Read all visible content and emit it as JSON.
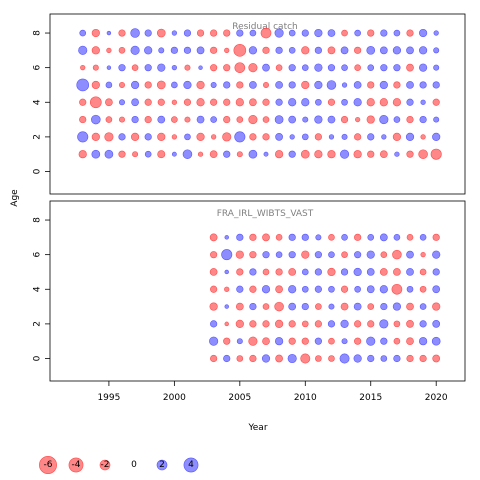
{
  "chart_data": {
    "type": "scatter",
    "xlabel": "Year",
    "ylabel": "Age",
    "x_ticks": [
      1995,
      2000,
      2005,
      2010,
      2015,
      2020
    ],
    "y_ticks": [
      0,
      2,
      4,
      6,
      8
    ],
    "xlim": [
      1990.5,
      2022.2
    ],
    "ylim": [
      -1.3,
      9.1
    ],
    "colors": {
      "negative": "#ff4646",
      "positive": "#5050ff"
    },
    "legend": {
      "placement": "bottom-left",
      "values": [
        -6,
        -4,
        -2,
        0,
        2,
        4
      ]
    },
    "panels": [
      {
        "title": "Residual catch",
        "years": [
          1993,
          1994,
          1995,
          1996,
          1997,
          1998,
          1999,
          2000,
          2001,
          2002,
          2003,
          2004,
          2005,
          2006,
          2007,
          2008,
          2009,
          2010,
          2011,
          2012,
          2013,
          2014,
          2015,
          2016,
          2017,
          2018,
          2019,
          2020
        ],
        "ages": [
          1,
          2,
          3,
          4,
          5,
          6,
          7,
          8
        ],
        "residuals": [
          [
            -1.6,
            1.8,
            1.8,
            -1.2,
            -0.8,
            1.0,
            -1.5,
            0.5,
            2.2,
            -0.6,
            -1.4,
            1.2,
            -0.8,
            1.8,
            0.5,
            -1.6,
            1.2,
            -1.8,
            -1.6,
            -1.6,
            2.0,
            -1.6,
            -1.2,
            -1.4,
            0.6,
            -1.2,
            -2.2,
            -3.0
          ],
          [
            3.0,
            -1.6,
            -2.0,
            1.2,
            -1.6,
            1.2,
            -1.6,
            -0.6,
            1.0,
            -1.6,
            -0.6,
            -2.0,
            3.0,
            -1.2,
            -1.2,
            1.4,
            0.6,
            1.0,
            -1.2,
            0.6,
            0.8,
            -1.2,
            1.2,
            0.6,
            -1.6,
            1.6,
            -0.6,
            1.6
          ],
          [
            -1.2,
            2.2,
            -1.0,
            -0.8,
            1.2,
            -1.2,
            1.4,
            -1.0,
            -0.8,
            1.4,
            1.0,
            -1.2,
            -1.0,
            -2.0,
            -1.0,
            1.8,
            1.4,
            0.8,
            1.6,
            1.4,
            -1.2,
            -0.6,
            -1.6,
            2.0,
            1.0,
            -1.2,
            1.2,
            0.8
          ],
          [
            -1.2,
            -3.4,
            -1.4,
            0.8,
            1.4,
            -1.2,
            -1.2,
            -0.6,
            -1.2,
            -1.6,
            -1.2,
            -1.2,
            -1.6,
            -1.4,
            -1.2,
            1.2,
            1.6,
            1.6,
            1.0,
            -1.2,
            1.0,
            1.6,
            -1.6,
            -1.6,
            -1.6,
            1.2,
            0.6,
            -1.2
          ],
          [
            4.0,
            -1.6,
            1.0,
            -0.8,
            1.6,
            -1.2,
            -1.8,
            1.0,
            1.6,
            -1.6,
            0.8,
            1.2,
            -1.2,
            1.4,
            -0.8,
            1.4,
            1.2,
            -1.6,
            1.6,
            2.2,
            0.6,
            1.4,
            -1.2,
            1.6,
            -1.2,
            1.4,
            1.2,
            1.2
          ],
          [
            -0.6,
            -0.8,
            0.4,
            1.2,
            -1.0,
            1.2,
            1.6,
            0.6,
            -0.8,
            0.4,
            -1.2,
            -1.2,
            -2.8,
            -2.0,
            1.4,
            -1.0,
            1.2,
            1.0,
            1.6,
            1.2,
            1.0,
            -1.0,
            1.0,
            1.2,
            1.2,
            -1.4,
            1.6,
            0.8
          ],
          [
            2.0,
            -1.6,
            -0.6,
            -1.0,
            2.0,
            1.6,
            0.8,
            1.2,
            1.2,
            1.4,
            -1.2,
            -0.6,
            -4.0,
            1.6,
            -1.2,
            1.2,
            1.0,
            -1.6,
            1.2,
            -1.4,
            1.4,
            -1.2,
            1.8,
            1.4,
            1.6,
            1.4,
            1.6,
            0.8
          ],
          [
            1.0,
            -1.6,
            0.4,
            -1.2,
            2.2,
            1.2,
            -1.8,
            0.6,
            1.2,
            -1.2,
            -1.2,
            -1.2,
            1.2,
            1.0,
            -2.8,
            2.0,
            1.0,
            1.2,
            1.6,
            1.4,
            -1.0,
            1.0,
            -1.2,
            1.2,
            1.0,
            -1.2,
            1.6,
            0.6
          ]
        ]
      },
      {
        "title": "FRA_IRL_WIBTS_VAST",
        "years": [
          2003,
          2004,
          2005,
          2006,
          2007,
          2008,
          2009,
          2010,
          2011,
          2012,
          2013,
          2014,
          2015,
          2016,
          2017,
          2018,
          2019,
          2020
        ],
        "ages": [
          0,
          1,
          2,
          3,
          4,
          5,
          6,
          7
        ],
        "residuals": [
          [
            -1.2,
            1.2,
            -1.0,
            -1.2,
            1.6,
            -1.4,
            2.0,
            -2.4,
            -1.0,
            -1.0,
            2.4,
            1.6,
            1.2,
            1.0,
            1.2,
            -1.2,
            -1.2,
            -1.4
          ],
          [
            2.0,
            -1.2,
            0.8,
            -2.0,
            -1.4,
            1.6,
            -1.2,
            -1.2,
            1.2,
            -1.0,
            0.8,
            -1.2,
            2.0,
            1.2,
            -1.0,
            -1.4,
            1.6,
            1.8
          ],
          [
            1.2,
            -0.4,
            -1.6,
            -1.2,
            -1.2,
            -1.6,
            -1.2,
            -1.0,
            -1.2,
            1.2,
            1.6,
            -1.2,
            -1.2,
            2.0,
            -1.0,
            -1.4,
            1.2,
            1.4
          ],
          [
            -1.6,
            0.4,
            -1.4,
            1.2,
            -1.0,
            -2.2,
            1.4,
            1.2,
            -1.0,
            0.8,
            -1.4,
            1.4,
            -1.0,
            1.2,
            1.6,
            -1.4,
            1.0,
            -1.6
          ],
          [
            -1.2,
            -0.6,
            1.2,
            -1.2,
            1.6,
            -1.4,
            1.6,
            1.0,
            1.2,
            1.0,
            -1.2,
            1.0,
            1.4,
            1.6,
            -2.8,
            1.0,
            -1.0,
            1.4
          ],
          [
            -1.4,
            0.4,
            -1.2,
            1.2,
            -1.0,
            -1.2,
            -1.4,
            1.0,
            1.2,
            -1.6,
            1.2,
            1.6,
            1.4,
            -1.4,
            -1.4,
            1.4,
            -1.0,
            1.2
          ],
          [
            -1.2,
            3.0,
            -1.6,
            -1.2,
            1.2,
            1.0,
            1.2,
            -1.6,
            1.2,
            1.0,
            -1.0,
            1.2,
            1.6,
            -1.0,
            -2.2,
            1.4,
            -0.6,
            1.6
          ],
          [
            -1.4,
            0.4,
            1.2,
            -1.2,
            -1.4,
            -1.0,
            1.2,
            1.2,
            0.8,
            -1.0,
            1.0,
            -1.2,
            1.0,
            1.4,
            1.0,
            -1.0,
            1.0,
            -1.2
          ]
        ]
      }
    ]
  }
}
